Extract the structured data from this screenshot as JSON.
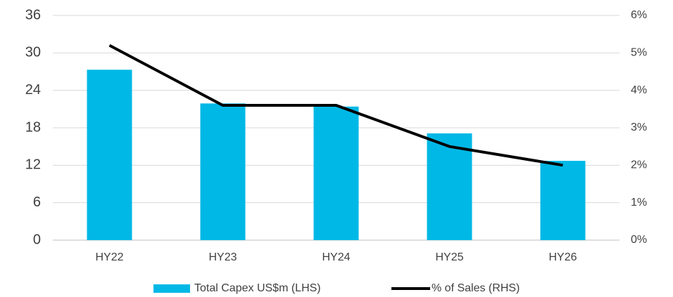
{
  "chart_data": {
    "type": "bar",
    "categories": [
      "HY22",
      "HY23",
      "HY24",
      "HY25",
      "HY26"
    ],
    "series": [
      {
        "name": "Total Capex US$m (LHS)",
        "color": "#00b8e6",
        "type": "bar",
        "values": [
          27.3,
          21.9,
          21.4,
          17.1,
          12.7
        ]
      },
      {
        "name": "% of Sales (RHS)",
        "color": "#000000",
        "type": "line",
        "axis": "y2",
        "values": [
          5.2,
          3.6,
          3.6,
          2.5,
          2.0
        ]
      }
    ],
    "ylim": [
      0,
      36
    ],
    "yticks": [
      0,
      6,
      12,
      18,
      24,
      30,
      36
    ],
    "y2lim": [
      0,
      6
    ],
    "y2ticks": [
      {
        "value": 0,
        "label": "0%"
      },
      {
        "value": 1,
        "label": "1%"
      },
      {
        "value": 2,
        "label": "2%"
      },
      {
        "value": 3,
        "label": "3%"
      },
      {
        "value": 4,
        "label": "4%"
      },
      {
        "value": 5,
        "label": "5%"
      },
      {
        "value": 6,
        "label": "6%"
      }
    ],
    "grid": true,
    "legend": "bottom"
  }
}
